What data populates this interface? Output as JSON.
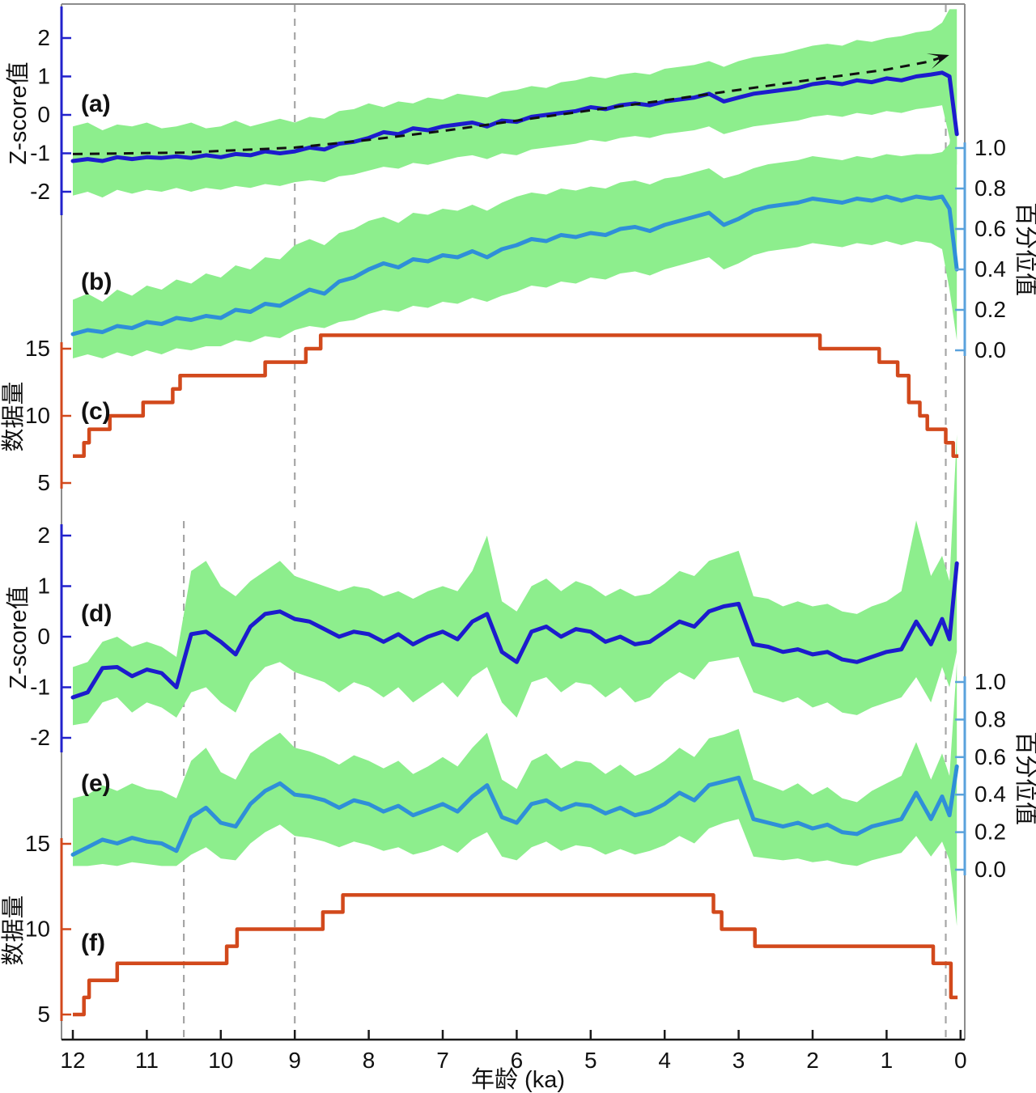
{
  "figure": {
    "x_axis_title": "年龄 (ka)",
    "left_axis_title_zscore": "Z-score值",
    "left_axis_title_count": "数据量",
    "right_axis_title_percentile": "百分位值"
  },
  "chart_data": {
    "type": "line",
    "title": "",
    "xlabel": "年龄 (ka)",
    "xlim": [
      12.2,
      -0.1
    ],
    "x_ticks": [
      "12",
      "11",
      "10",
      "9",
      "8",
      "7",
      "6",
      "5",
      "4",
      "3",
      "2",
      "1",
      "0"
    ],
    "grid": false,
    "legend": "none",
    "dashed_reference_lines_ka": {
      "top_section": [
        9,
        0.2
      ],
      "bottom_section": [
        10.5,
        9,
        0.2
      ]
    },
    "panels": [
      {
        "id": "a",
        "label": "(a)",
        "axis_title": "Z-score值",
        "side": "left",
        "yticks": [
          "2",
          "1",
          "0",
          "-1",
          "-2"
        ],
        "ylim": [
          -2.9,
          2.9
        ],
        "description": "stacked z-score composite with 95% band and dashed trend arrow"
      },
      {
        "id": "b",
        "label": "(b)",
        "axis_title": "百分位值",
        "side": "right",
        "yticks": [
          "1.0",
          "0.8",
          "0.6",
          "0.4",
          "0.2",
          "0.0"
        ],
        "ylim": [
          0,
          1
        ],
        "description": "percentile composite with band"
      },
      {
        "id": "c",
        "label": "(c)",
        "axis_title": "数据量",
        "side": "left",
        "yticks": [
          "15",
          "10",
          "5"
        ],
        "ylim": [
          2,
          17
        ],
        "description": "record count step line"
      },
      {
        "id": "d",
        "label": "(d)",
        "axis_title": "Z-score值",
        "side": "left",
        "yticks": [
          "2",
          "1",
          "0",
          "-1",
          "-2"
        ],
        "ylim": [
          -2.9,
          2.9
        ],
        "description": "z-score composite with band"
      },
      {
        "id": "e",
        "label": "(e)",
        "axis_title": "百分位值",
        "side": "right",
        "yticks": [
          "1.0",
          "0.8",
          "0.6",
          "0.4",
          "0.2",
          "0.0"
        ],
        "ylim": [
          0,
          1
        ],
        "description": "percentile composite with band"
      },
      {
        "id": "f",
        "label": "(f)",
        "axis_title": "数据量",
        "side": "left",
        "yticks": [
          "15",
          "10",
          "5"
        ],
        "ylim": [
          2,
          17
        ],
        "description": "record count step line"
      }
    ],
    "x": [
      12,
      11.8,
      11.6,
      11.4,
      11.2,
      11,
      10.8,
      10.6,
      10.4,
      10.2,
      10,
      9.8,
      9.6,
      9.4,
      9.2,
      9,
      8.8,
      8.6,
      8.4,
      8.2,
      8,
      7.8,
      7.6,
      7.4,
      7.2,
      7,
      6.8,
      6.6,
      6.4,
      6.2,
      6,
      5.8,
      5.6,
      5.4,
      5.2,
      5,
      4.8,
      4.6,
      4.4,
      4.2,
      4,
      3.8,
      3.6,
      3.4,
      3.2,
      3,
      2.8,
      2.6,
      2.4,
      2.2,
      2,
      1.8,
      1.6,
      1.4,
      1.2,
      1,
      0.8,
      0.6,
      0.4,
      0.25,
      0.15,
      0.05
    ],
    "series": {
      "a_mean": [
        -1.2,
        -1.15,
        -1.2,
        -1.1,
        -1.15,
        -1.1,
        -1.12,
        -1.08,
        -1.12,
        -1.05,
        -1.1,
        -1.02,
        -1.05,
        -0.95,
        -1,
        -0.95,
        -0.85,
        -0.9,
        -0.75,
        -0.7,
        -0.6,
        -0.45,
        -0.5,
        -0.35,
        -0.4,
        -0.3,
        -0.25,
        -0.2,
        -0.3,
        -0.15,
        -0.18,
        -0.05,
        0,
        0.05,
        0.1,
        0.2,
        0.15,
        0.25,
        0.3,
        0.25,
        0.35,
        0.4,
        0.45,
        0.55,
        0.35,
        0.45,
        0.55,
        0.6,
        0.65,
        0.7,
        0.8,
        0.85,
        0.8,
        0.9,
        0.85,
        0.95,
        0.9,
        1,
        1.05,
        1.1,
        1,
        -0.5
      ],
      "a_upper": [
        -0.3,
        -0.2,
        -0.4,
        -0.25,
        -0.3,
        -0.2,
        -0.35,
        -0.3,
        -0.2,
        -0.35,
        -0.3,
        -0.15,
        -0.3,
        -0.2,
        -0.1,
        -0.2,
        -0.05,
        -0.1,
        0.1,
        0.15,
        0.3,
        0.2,
        0.35,
        0.3,
        0.45,
        0.4,
        0.55,
        0.5,
        0.45,
        0.6,
        0.65,
        0.75,
        0.7,
        0.85,
        0.9,
        1,
        0.95,
        1.05,
        1.1,
        1.05,
        1.2,
        1.25,
        1.3,
        1.4,
        1.25,
        1.4,
        1.5,
        1.55,
        1.6,
        1.7,
        1.8,
        1.85,
        1.8,
        1.95,
        1.9,
        2,
        2.05,
        2.15,
        2.2,
        2.4,
        2.75,
        2.75
      ],
      "a_lower": [
        -2.1,
        -2,
        -2.15,
        -1.95,
        -2.05,
        -1.95,
        -2,
        -1.9,
        -2,
        -1.9,
        -1.95,
        -1.85,
        -1.9,
        -1.8,
        -1.85,
        -1.75,
        -1.7,
        -1.75,
        -1.6,
        -1.55,
        -1.45,
        -1.35,
        -1.4,
        -1.25,
        -1.3,
        -1.2,
        -1.1,
        -1.05,
        -1.15,
        -1,
        -1.05,
        -0.9,
        -0.85,
        -0.8,
        -0.75,
        -0.65,
        -0.7,
        -0.6,
        -0.55,
        -0.6,
        -0.5,
        -0.45,
        -0.4,
        -0.3,
        -0.5,
        -0.4,
        -0.3,
        -0.25,
        -0.2,
        -0.15,
        -0.05,
        0,
        -0.05,
        0.05,
        0,
        0.1,
        0.05,
        0.15,
        0.2,
        0.25,
        -0.6,
        -1.3
      ],
      "b_mean": [
        0.08,
        0.1,
        0.09,
        0.12,
        0.11,
        0.14,
        0.13,
        0.16,
        0.15,
        0.17,
        0.16,
        0.2,
        0.19,
        0.23,
        0.22,
        0.26,
        0.3,
        0.28,
        0.34,
        0.36,
        0.4,
        0.43,
        0.41,
        0.45,
        0.44,
        0.47,
        0.46,
        0.49,
        0.46,
        0.5,
        0.52,
        0.55,
        0.54,
        0.57,
        0.56,
        0.58,
        0.57,
        0.6,
        0.61,
        0.59,
        0.62,
        0.64,
        0.66,
        0.68,
        0.62,
        0.65,
        0.69,
        0.71,
        0.72,
        0.73,
        0.75,
        0.74,
        0.73,
        0.75,
        0.74,
        0.76,
        0.74,
        0.76,
        0.75,
        0.76,
        0.7,
        0.4
      ],
      "b_upper": [
        0.25,
        0.28,
        0.24,
        0.3,
        0.27,
        0.32,
        0.3,
        0.35,
        0.33,
        0.38,
        0.36,
        0.42,
        0.4,
        0.46,
        0.45,
        0.52,
        0.55,
        0.52,
        0.58,
        0.6,
        0.64,
        0.66,
        0.63,
        0.68,
        0.67,
        0.7,
        0.69,
        0.72,
        0.69,
        0.73,
        0.76,
        0.78,
        0.77,
        0.8,
        0.79,
        0.81,
        0.8,
        0.83,
        0.84,
        0.82,
        0.85,
        0.86,
        0.88,
        0.9,
        0.85,
        0.87,
        0.9,
        0.92,
        0.93,
        0.94,
        0.96,
        0.95,
        0.94,
        0.96,
        0.95,
        0.97,
        0.96,
        0.97,
        0.97,
        0.98,
        1.02,
        1.3
      ],
      "b_lower": [
        -0.04,
        -0.02,
        -0.04,
        -0.01,
        -0.03,
        0,
        -0.02,
        0.01,
        0,
        0.02,
        0.02,
        0.05,
        0.04,
        0.07,
        0.06,
        0.1,
        0.12,
        0.11,
        0.14,
        0.15,
        0.18,
        0.2,
        0.19,
        0.22,
        0.21,
        0.24,
        0.23,
        0.26,
        0.24,
        0.27,
        0.29,
        0.32,
        0.31,
        0.34,
        0.33,
        0.36,
        0.35,
        0.38,
        0.39,
        0.37,
        0.4,
        0.42,
        0.44,
        0.46,
        0.4,
        0.43,
        0.47,
        0.49,
        0.5,
        0.51,
        0.53,
        0.52,
        0.51,
        0.53,
        0.52,
        0.54,
        0.52,
        0.54,
        0.53,
        0.5,
        0.3,
        0.05
      ],
      "d_mean": [
        -1.2,
        -1.1,
        -0.62,
        -0.6,
        -0.78,
        -0.65,
        -0.72,
        -1,
        0.05,
        0.1,
        -0.1,
        -0.35,
        0.2,
        0.45,
        0.5,
        0.35,
        0.3,
        0.15,
        0,
        0.1,
        0.05,
        -0.1,
        0.05,
        -0.15,
        0,
        0.1,
        -0.05,
        0.3,
        0.45,
        -0.3,
        -0.5,
        0.1,
        0.2,
        0,
        0.15,
        0.1,
        -0.1,
        0,
        -0.15,
        -0.1,
        0.1,
        0.3,
        0.2,
        0.5,
        0.6,
        0.65,
        -0.15,
        -0.2,
        -0.3,
        -0.25,
        -0.35,
        -0.3,
        -0.45,
        -0.5,
        -0.4,
        -0.3,
        -0.25,
        0.3,
        -0.15,
        0.35,
        -0.05,
        1.45
      ],
      "d_upper": [
        -0.6,
        -0.5,
        -0.1,
        0,
        -0.2,
        -0.1,
        -0.2,
        -0.4,
        1.3,
        1.5,
        1,
        0.8,
        1.1,
        1.3,
        1.5,
        1.2,
        1.1,
        1,
        0.9,
        1,
        0.95,
        0.8,
        0.9,
        0.75,
        0.9,
        1,
        0.9,
        1.3,
        2,
        0.7,
        0.5,
        1,
        1.15,
        0.9,
        1.1,
        1,
        0.8,
        0.95,
        0.8,
        0.85,
        1.05,
        1.3,
        1.2,
        1.5,
        1.6,
        1.7,
        0.8,
        0.75,
        0.6,
        0.7,
        0.6,
        0.65,
        0.5,
        0.45,
        0.6,
        0.7,
        0.9,
        2.3,
        1.2,
        1.6,
        1.1,
        4
      ],
      "d_lower": [
        -1.75,
        -1.7,
        -1.3,
        -1.2,
        -1.5,
        -1.3,
        -1.4,
        -1.6,
        -1.1,
        -1,
        -1.3,
        -1.5,
        -0.9,
        -0.6,
        -0.5,
        -0.7,
        -0.8,
        -0.9,
        -1.1,
        -0.9,
        -1,
        -1.2,
        -1,
        -1.3,
        -1.1,
        -0.9,
        -1.2,
        -0.8,
        -0.6,
        -1.3,
        -1.6,
        -0.9,
        -0.8,
        -1.1,
        -0.9,
        -0.95,
        -1.2,
        -1,
        -1.3,
        -1.2,
        -0.9,
        -0.7,
        -0.85,
        -0.5,
        -0.45,
        -0.4,
        -1.1,
        -1.2,
        -1.3,
        -1.2,
        -1.4,
        -1.3,
        -1.5,
        -1.55,
        -1.4,
        -1.3,
        -1.2,
        -0.8,
        -1.3,
        -0.6,
        -1,
        -0.3
      ],
      "e_mean": [
        0.08,
        0.12,
        0.16,
        0.14,
        0.17,
        0.15,
        0.14,
        0.1,
        0.28,
        0.33,
        0.25,
        0.23,
        0.35,
        0.42,
        0.46,
        0.4,
        0.39,
        0.37,
        0.33,
        0.37,
        0.35,
        0.31,
        0.34,
        0.29,
        0.32,
        0.35,
        0.31,
        0.39,
        0.45,
        0.28,
        0.25,
        0.35,
        0.37,
        0.32,
        0.35,
        0.34,
        0.3,
        0.33,
        0.29,
        0.31,
        0.35,
        0.41,
        0.37,
        0.45,
        0.47,
        0.49,
        0.27,
        0.25,
        0.23,
        0.25,
        0.22,
        0.24,
        0.2,
        0.19,
        0.23,
        0.25,
        0.27,
        0.41,
        0.27,
        0.39,
        0.29,
        0.55
      ],
      "e_upper": [
        0.38,
        0.4,
        0.45,
        0.42,
        0.46,
        0.43,
        0.42,
        0.38,
        0.58,
        0.65,
        0.52,
        0.48,
        0.62,
        0.68,
        0.73,
        0.65,
        0.63,
        0.6,
        0.56,
        0.61,
        0.58,
        0.54,
        0.58,
        0.51,
        0.55,
        0.6,
        0.55,
        0.65,
        0.73,
        0.48,
        0.43,
        0.58,
        0.62,
        0.54,
        0.58,
        0.57,
        0.51,
        0.56,
        0.5,
        0.53,
        0.58,
        0.65,
        0.6,
        0.7,
        0.72,
        0.75,
        0.48,
        0.45,
        0.42,
        0.46,
        0.4,
        0.44,
        0.38,
        0.36,
        0.42,
        0.46,
        0.5,
        0.68,
        0.48,
        0.62,
        0.5,
        1.1
      ],
      "e_lower": [
        0.02,
        0.02,
        0.03,
        0.02,
        0.04,
        0.03,
        0.02,
        0.02,
        0.08,
        0.12,
        0.06,
        0.05,
        0.14,
        0.2,
        0.24,
        0.18,
        0.17,
        0.15,
        0.12,
        0.15,
        0.13,
        0.1,
        0.12,
        0.08,
        0.1,
        0.13,
        0.09,
        0.16,
        0.2,
        0.07,
        0.05,
        0.12,
        0.15,
        0.1,
        0.13,
        0.12,
        0.08,
        0.11,
        0.08,
        0.1,
        0.13,
        0.18,
        0.14,
        0.22,
        0.25,
        0.27,
        0.07,
        0.06,
        0.05,
        0.06,
        0.04,
        0.05,
        0.03,
        0.02,
        0.05,
        0.07,
        0.09,
        0.18,
        0.07,
        0.15,
        0.05,
        -0.3
      ]
    },
    "steps": {
      "c": [
        [
          12,
          7
        ],
        [
          11.85,
          8
        ],
        [
          11.78,
          9
        ],
        [
          11.5,
          10
        ],
        [
          11.05,
          11
        ],
        [
          10.65,
          12
        ],
        [
          10.55,
          13
        ],
        [
          9.4,
          14
        ],
        [
          8.85,
          15
        ],
        [
          8.65,
          16
        ],
        [
          1.9,
          15
        ],
        [
          1.1,
          14
        ],
        [
          0.85,
          13
        ],
        [
          0.7,
          11
        ],
        [
          0.55,
          10
        ],
        [
          0.45,
          9
        ],
        [
          0.2,
          8
        ],
        [
          0.1,
          7
        ]
      ],
      "c_end_ka": 0.03,
      "f": [
        [
          12,
          5
        ],
        [
          11.85,
          6
        ],
        [
          11.78,
          7
        ],
        [
          11.4,
          8
        ],
        [
          9.92,
          9
        ],
        [
          9.78,
          10
        ],
        [
          8.62,
          11
        ],
        [
          8.35,
          12
        ],
        [
          3.34,
          11
        ],
        [
          3.23,
          10
        ],
        [
          2.78,
          9
        ],
        [
          0.37,
          8
        ],
        [
          0.13,
          6
        ]
      ],
      "f_end_ka": 0.04
    },
    "trend_arrow_a": [
      [
        12,
        -1.02
      ],
      [
        10.5,
        -0.98
      ],
      [
        9,
        -0.85
      ],
      [
        8,
        -0.65
      ],
      [
        7,
        -0.42
      ],
      [
        6,
        -0.15
      ],
      [
        5,
        0.12
      ],
      [
        4,
        0.38
      ],
      [
        3,
        0.65
      ],
      [
        2,
        0.92
      ],
      [
        1,
        1.18
      ],
      [
        0.45,
        1.38
      ],
      [
        0.3,
        1.47
      ]
    ],
    "colors": {
      "band_green": "#8dee8d",
      "dark_blue": "#1c1ccd",
      "light_blue": "#2f8fd8",
      "count_orange": "#d2491c",
      "zscore_axis_blue": "#2222cc",
      "percentile_axis_blue": "#5aa2dc",
      "dashed_gray": "#a6a6a6",
      "trend_black": "#111111",
      "spine_gray": "#8c8c8c",
      "axis_black": "#1a1a1a"
    }
  }
}
